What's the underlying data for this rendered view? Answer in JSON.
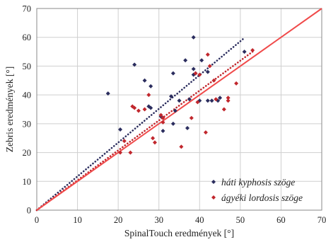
{
  "chart_data": {
    "type": "scatter",
    "xlabel": "SpinalTouch eredmények [°]",
    "ylabel": "Zebris eredmények [°]",
    "xlim": [
      0,
      70
    ],
    "ylim": [
      0,
      70
    ],
    "xticks": [
      "0",
      "10",
      "20",
      "30",
      "40",
      "50",
      "60",
      "70"
    ],
    "yticks": [
      "0",
      "10",
      "20",
      "30",
      "40",
      "50",
      "60",
      "70"
    ],
    "grid": true,
    "legend_position": "bottom-right",
    "colors": {
      "kyphosis": "#2b2d5e",
      "lordosis": "#c1272d",
      "identity_line": "#f04a4a"
    },
    "series": [
      {
        "name": "háti kyphosis szöge",
        "marker": "diamond",
        "color": "#2b2d5e",
        "points": [
          [
            17.5,
            40.5
          ],
          [
            20.5,
            28
          ],
          [
            24,
            50.5
          ],
          [
            26.5,
            45
          ],
          [
            27.5,
            36
          ],
          [
            28,
            35.5
          ],
          [
            28,
            43
          ],
          [
            30.5,
            32.5
          ],
          [
            31,
            27.5
          ],
          [
            33,
            39.5
          ],
          [
            33.5,
            47.5
          ],
          [
            33.5,
            30
          ],
          [
            34,
            34.5
          ],
          [
            35,
            38
          ],
          [
            36.5,
            52
          ],
          [
            37,
            28.5
          ],
          [
            37.5,
            38.5
          ],
          [
            38.5,
            60
          ],
          [
            38.5,
            47
          ],
          [
            38.5,
            49
          ],
          [
            39,
            47.5
          ],
          [
            40,
            38
          ],
          [
            40.5,
            52
          ],
          [
            42,
            48
          ],
          [
            42,
            38
          ],
          [
            43,
            38
          ],
          [
            44.5,
            38
          ],
          [
            45,
            39
          ],
          [
            51,
            55
          ]
        ]
      },
      {
        "name": "ágyéki lordosis szöge",
        "marker": "diamond",
        "color": "#c1272d",
        "points": [
          [
            20.5,
            20
          ],
          [
            21.5,
            24
          ],
          [
            23,
            20
          ],
          [
            23.5,
            36
          ],
          [
            24,
            35.5
          ],
          [
            25,
            34.5
          ],
          [
            26.5,
            35
          ],
          [
            27.5,
            40
          ],
          [
            28.5,
            25
          ],
          [
            29,
            23.5
          ],
          [
            30.5,
            33
          ],
          [
            31,
            32
          ],
          [
            31,
            30.5
          ],
          [
            35.5,
            22
          ],
          [
            38,
            32
          ],
          [
            39,
            47.5
          ],
          [
            39.5,
            37.5
          ],
          [
            40,
            47
          ],
          [
            41.5,
            27
          ],
          [
            42,
            54
          ],
          [
            42.5,
            50
          ],
          [
            43.5,
            45
          ],
          [
            44,
            38.5
          ],
          [
            46,
            35
          ],
          [
            47,
            39
          ],
          [
            47,
            38
          ],
          [
            49,
            44
          ],
          [
            53,
            55.5
          ]
        ]
      }
    ],
    "trend_lines": [
      {
        "series": "háti kyphosis szöge",
        "style": "dotted",
        "color": "#2b2d5e",
        "from": [
          0,
          0
        ],
        "to": [
          51,
          59.8
        ]
      },
      {
        "series": "ágyéki lordosis szöge",
        "style": "dotted",
        "color": "#c1272d",
        "from": [
          0,
          0
        ],
        "to": [
          53,
          55
        ]
      },
      {
        "series": "identity",
        "style": "solid",
        "color": "#f04a4a",
        "from": [
          0,
          0
        ],
        "to": [
          70,
          70
        ]
      }
    ]
  }
}
